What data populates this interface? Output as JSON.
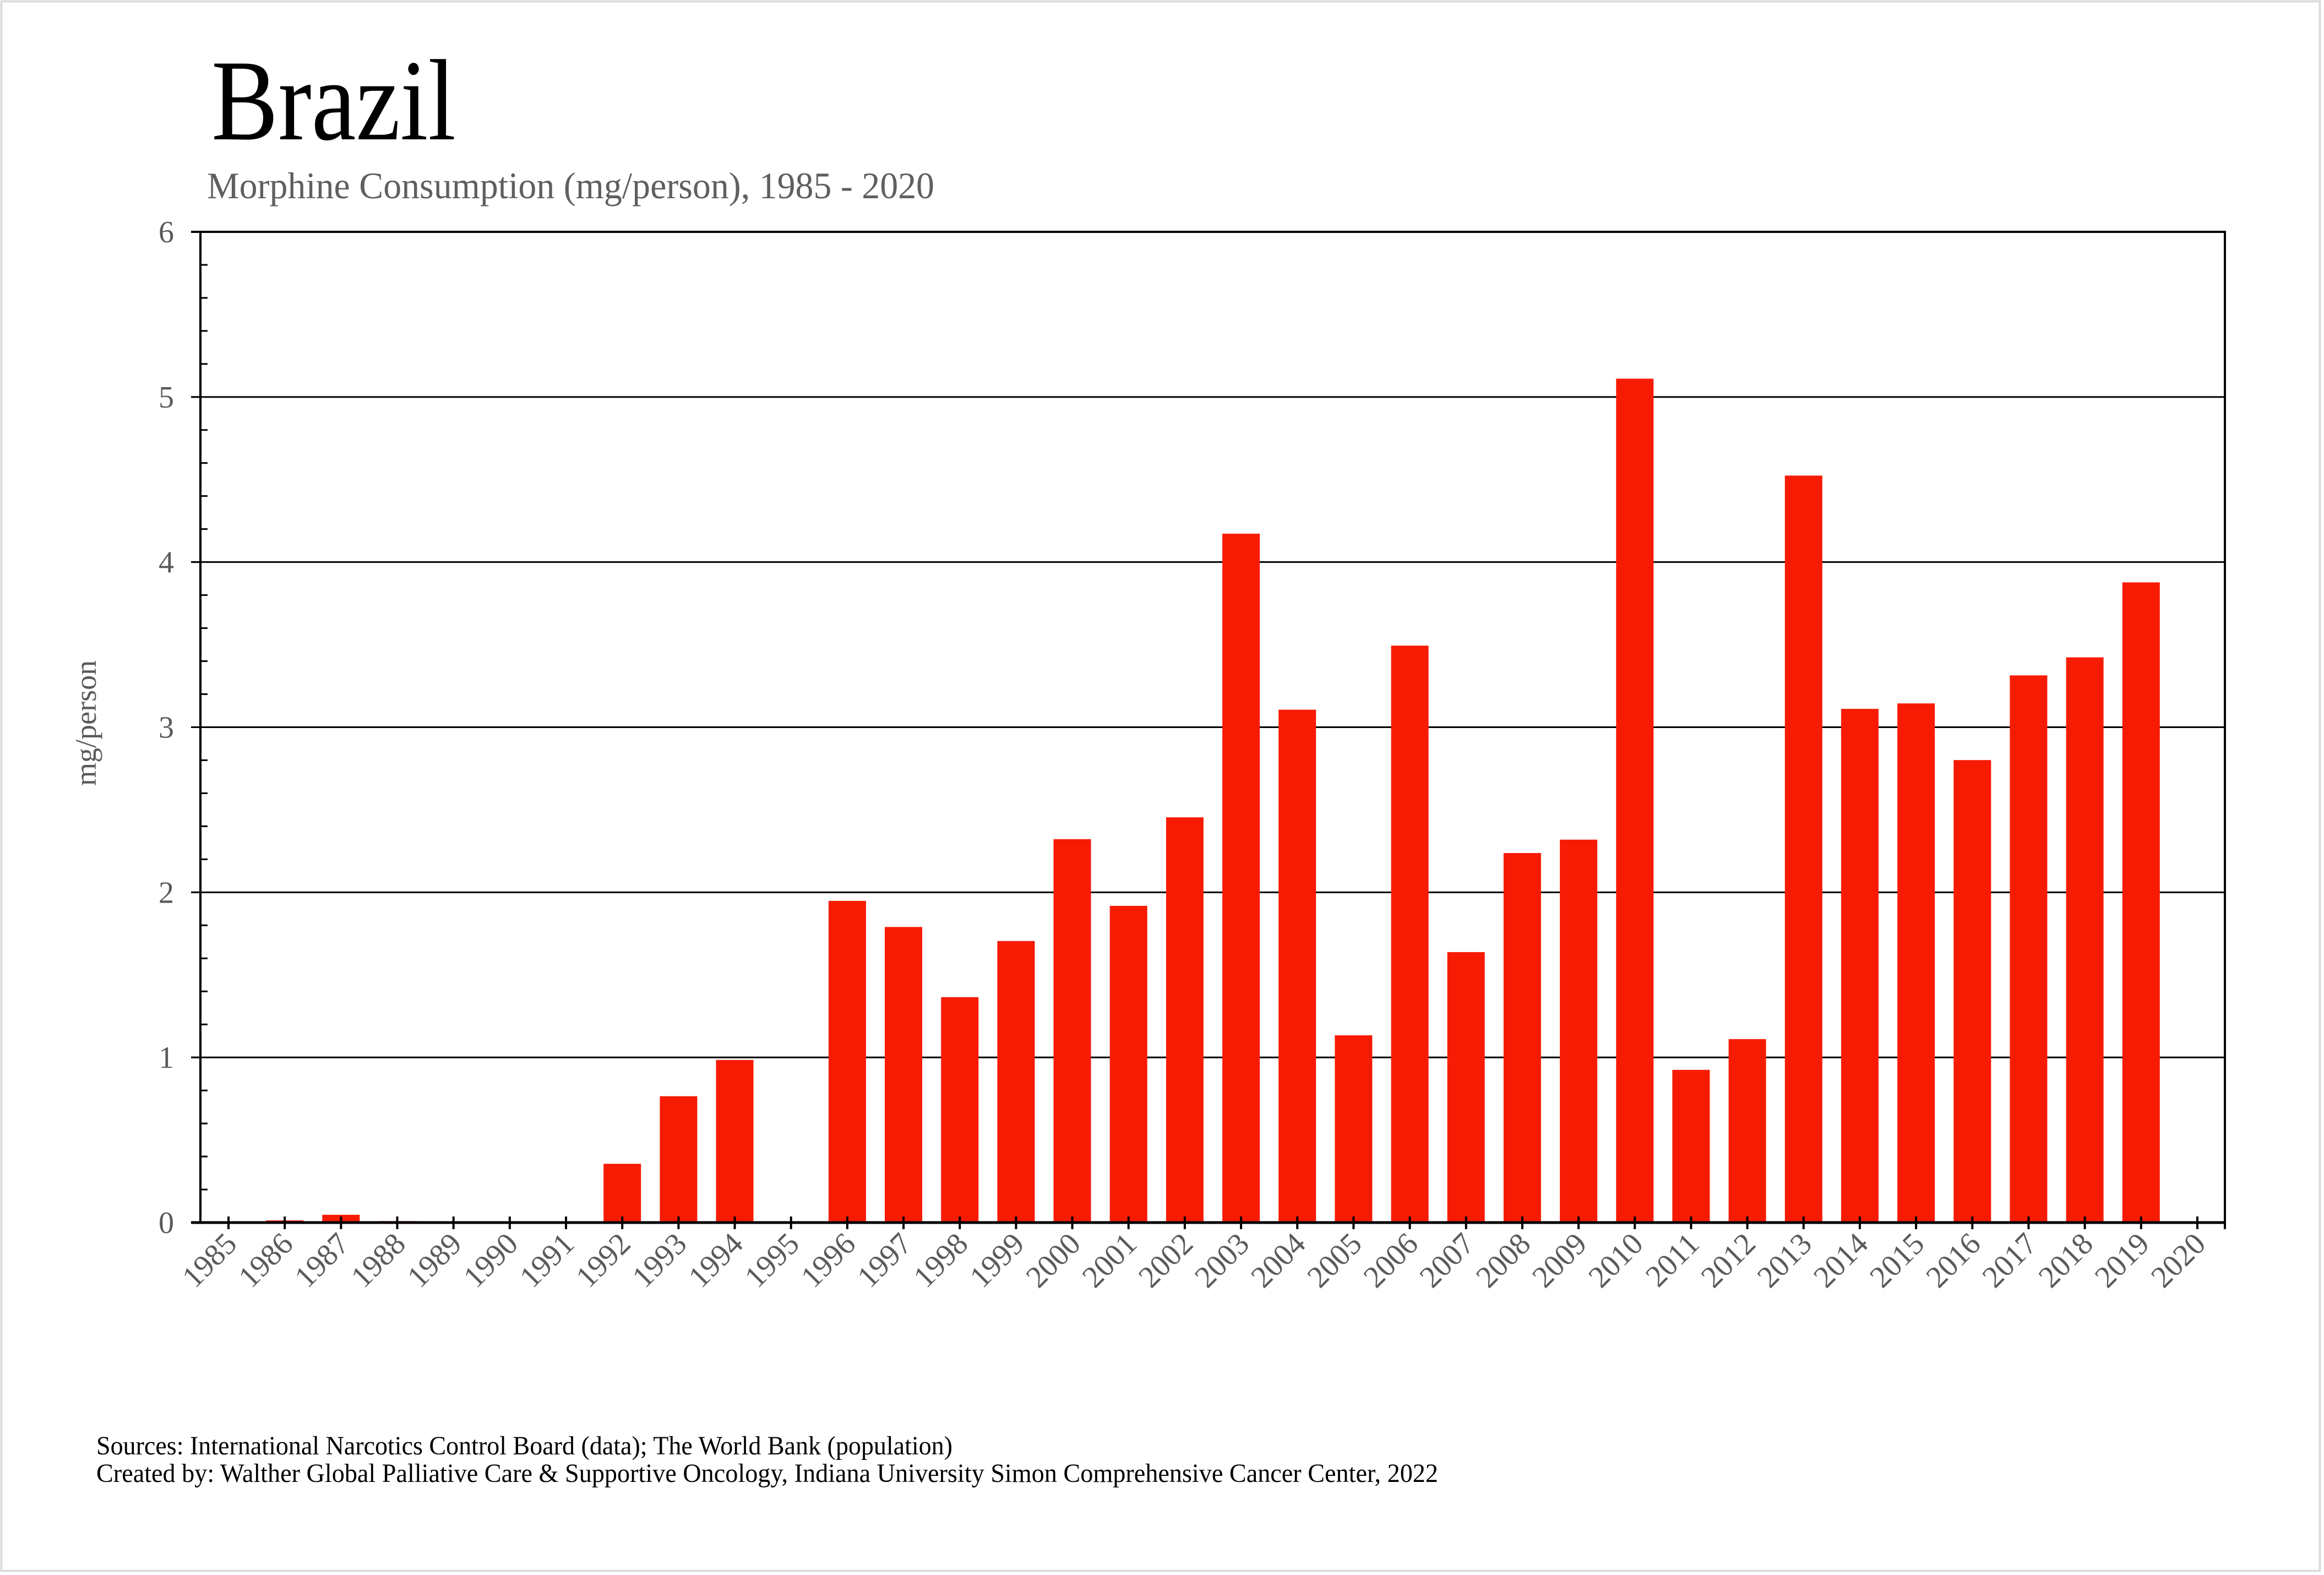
{
  "header": {
    "title": "Brazil",
    "subtitle": "Morphine Consumption (mg/person), 1985 - 2020"
  },
  "footer": {
    "sources": "Sources: International Narcotics Control Board (data); The World Bank (population)",
    "created_by": "Created by: Walther  Global Palliative Care & Supportive Oncology, Indiana University Simon Comprehensive Cancer Center, 2022"
  },
  "colors": {
    "bar": "#f71b04",
    "axis": "#000000",
    "frame": "#dcdcdc"
  },
  "chart_data": {
    "type": "bar",
    "title": "Brazil",
    "subtitle": "Morphine Consumption (mg/person), 1985 - 2020",
    "xlabel": "",
    "ylabel": "mg/person",
    "ylim": [
      0,
      6
    ],
    "yticks": [
      0,
      1,
      2,
      3,
      4,
      5,
      6
    ],
    "yticks_labels": [
      "0",
      "1",
      "2",
      "3",
      "4",
      "5",
      "6"
    ],
    "y_minor_step": 0.2,
    "grid": true,
    "legend": "none",
    "categories": [
      "1985",
      "1986",
      "1987",
      "1988",
      "1989",
      "1990",
      "1991",
      "1992",
      "1993",
      "1994",
      "1995",
      "1996",
      "1997",
      "1998",
      "1999",
      "2000",
      "2001",
      "2002",
      "2003",
      "2004",
      "2005",
      "2006",
      "2007",
      "2008",
      "2009",
      "2010",
      "2011",
      "2012",
      "2013",
      "2014",
      "2015",
      "2016",
      "2017",
      "2018",
      "2019",
      "2020"
    ],
    "values": [
      0,
      0.013,
      0.047,
      0.009,
      0.006,
      0,
      0,
      0.356,
      0.765,
      0.985,
      0,
      1.948,
      1.79,
      1.365,
      1.705,
      2.322,
      1.918,
      2.454,
      4.172,
      3.106,
      1.134,
      3.494,
      1.638,
      2.238,
      2.319,
      5.111,
      0.925,
      1.111,
      4.524,
      3.111,
      3.144,
      2.801,
      3.314,
      3.423,
      3.877,
      0
    ],
    "series": [
      {
        "name": "Morphine Consumption (mg/person)",
        "values": [
          0,
          0.013,
          0.047,
          0.009,
          0.006,
          0,
          0,
          0.356,
          0.765,
          0.985,
          0,
          1.948,
          1.79,
          1.365,
          1.705,
          2.322,
          1.918,
          2.454,
          4.172,
          3.106,
          1.134,
          3.494,
          1.638,
          2.238,
          2.319,
          5.111,
          0.925,
          1.111,
          4.524,
          3.111,
          3.144,
          2.801,
          3.314,
          3.423,
          3.877,
          0
        ]
      }
    ]
  }
}
